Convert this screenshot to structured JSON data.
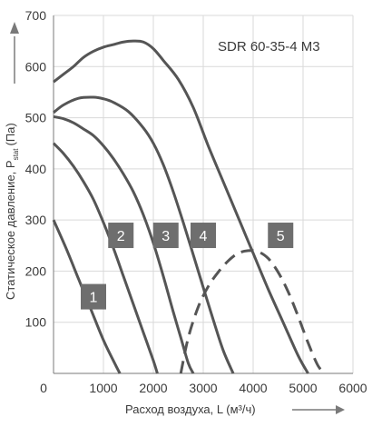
{
  "chart_data": {
    "type": "line",
    "title": "SDR 60-35-4 M3",
    "xlabel": "Расход воздуха, L (м³/ч)",
    "ylabel": "Статическое давление, P",
    "ylabel_sub": "stat",
    "ylabel_unit": "(Па)",
    "xlim": [
      0,
      6000
    ],
    "ylim": [
      0,
      700
    ],
    "xticks": [
      0,
      1000,
      2000,
      3000,
      4000,
      5000,
      6000
    ],
    "yticks": [
      100,
      200,
      300,
      400,
      500,
      600,
      700
    ],
    "grid": true,
    "colors": {
      "line": "#555555",
      "badge": "#6e6e6e",
      "grid": "#d9d9d9",
      "axis": "#7a7a7a"
    },
    "series": [
      {
        "name": "1",
        "style": "solid",
        "x": [
          0,
          250,
          500,
          750,
          1000,
          1250,
          1330
        ],
        "y": [
          300,
          245,
          185,
          125,
          65,
          15,
          0
        ]
      },
      {
        "name": "2",
        "style": "solid",
        "x": [
          0,
          200,
          400,
          600,
          800,
          1000,
          1200,
          1400,
          1600,
          1800,
          2000,
          2080
        ],
        "y": [
          450,
          430,
          405,
          375,
          340,
          295,
          245,
          190,
          135,
          80,
          25,
          0
        ]
      },
      {
        "name": "3",
        "style": "solid",
        "x": [
          0,
          200,
          400,
          600,
          800,
          1000,
          1200,
          1400,
          1600,
          1800,
          2000,
          2200,
          2400,
          2550,
          2700,
          2800
        ],
        "y": [
          502,
          498,
          490,
          478,
          465,
          445,
          420,
          390,
          355,
          310,
          255,
          190,
          120,
          70,
          20,
          0
        ]
      },
      {
        "name": "4",
        "style": "solid",
        "x": [
          0,
          200,
          500,
          800,
          1000,
          1200,
          1500,
          1800,
          2000,
          2200,
          2400,
          2600,
          2800,
          3000,
          3200,
          3400,
          3600
        ],
        "y": [
          510,
          525,
          538,
          540,
          537,
          530,
          512,
          480,
          450,
          408,
          355,
          295,
          232,
          168,
          105,
          45,
          0
        ]
      },
      {
        "name": "5",
        "style": "solid",
        "x": [
          0,
          200,
          400,
          600,
          800,
          1000,
          1200,
          1400,
          1600,
          1800,
          2000,
          2200,
          2500,
          2800,
          3100,
          3400,
          3700,
          4000,
          4300,
          4600,
          4900,
          5100
        ],
        "y": [
          570,
          585,
          600,
          618,
          630,
          638,
          643,
          648,
          650,
          648,
          635,
          612,
          575,
          520,
          445,
          375,
          305,
          235,
          165,
          100,
          35,
          0
        ]
      },
      {
        "name": "",
        "style": "dashed",
        "x": [
          2550,
          2700,
          2900,
          3100,
          3300,
          3500,
          3700,
          3900,
          4100,
          4300,
          4500,
          4700,
          4900,
          5100,
          5300,
          5450
        ],
        "y": [
          0,
          70,
          130,
          170,
          198,
          220,
          235,
          240,
          238,
          225,
          198,
          160,
          112,
          60,
          15,
          0
        ]
      }
    ],
    "badges": [
      {
        "label": "1",
        "x": 800,
        "y": 150
      },
      {
        "label": "2",
        "x": 1350,
        "y": 270
      },
      {
        "label": "3",
        "x": 2250,
        "y": 270
      },
      {
        "label": "4",
        "x": 3000,
        "y": 270
      },
      {
        "label": "5",
        "x": 4550,
        "y": 270
      }
    ]
  }
}
